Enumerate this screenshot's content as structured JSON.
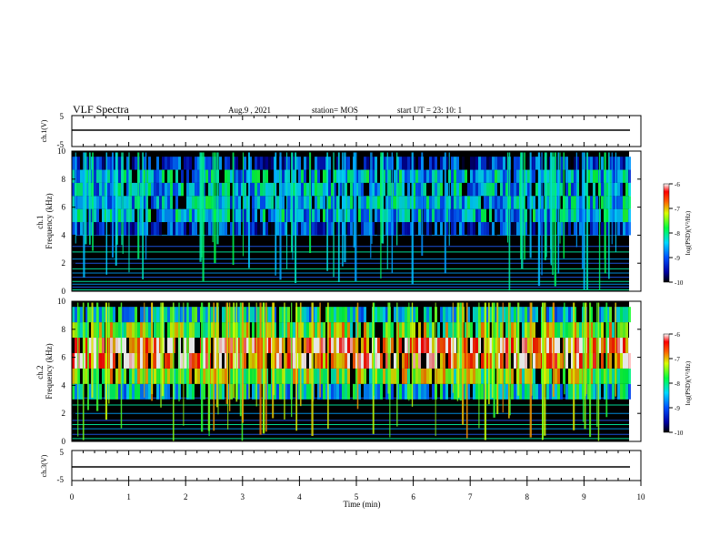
{
  "header": {
    "title": "VLF Spectra",
    "date": "Aug.9  , 2021",
    "station": "station= MOS",
    "start": "start  UT =   23: 10: 1"
  },
  "chart_data": [
    {
      "type": "line",
      "panel": "ch1-waveform",
      "ylabel": "ch.1(V)",
      "ylim": [
        -5,
        5
      ],
      "yticks": [
        "5",
        "-5"
      ],
      "xlim": [
        0,
        10
      ],
      "series": [
        {
          "values_level": 0
        }
      ]
    },
    {
      "type": "heatmap",
      "panel": "ch1-spectrogram",
      "ylabel": "ch.1\nFrequency (kHz)",
      "ylim": [
        0,
        10
      ],
      "yticks": [
        "0",
        "2",
        "4",
        "6",
        "8",
        "10"
      ],
      "xlim": [
        0,
        10
      ],
      "colorbar": {
        "label": "log(PSD)(V²/Hz)",
        "range": [
          -10,
          -6
        ],
        "ticks": [
          "-6",
          "-7",
          "-8",
          "-9",
          "-10"
        ]
      },
      "band_khz": [
        4,
        9.6
      ],
      "band_level": -8,
      "noise_lines_khz": [
        0.1,
        0.3,
        0.5,
        0.7,
        1.0,
        1.3,
        1.6,
        2.0,
        2.3,
        2.8,
        3.2,
        4.0
      ],
      "burst_count": 80
    },
    {
      "type": "heatmap",
      "panel": "ch2-spectrogram",
      "ylabel": "ch.2\nFrequency (kHz)",
      "ylim": [
        0,
        10
      ],
      "yticks": [
        "0",
        "2",
        "4",
        "6",
        "8",
        "10"
      ],
      "xlim": [
        0,
        10
      ],
      "colorbar": {
        "label": "log(PSD)(V²/Hz)",
        "range": [
          -10,
          -6
        ],
        "ticks": [
          "-6",
          "-7",
          "-8",
          "-9",
          "-10"
        ]
      },
      "band_khz": [
        3,
        9.6
      ],
      "core_khz": [
        5,
        8
      ],
      "band_level": -7,
      "noise_lines_khz": [
        0.2,
        0.5,
        0.9,
        1.2,
        1.5,
        2.0,
        2.6,
        3.1
      ],
      "burst_count": 90
    },
    {
      "type": "line",
      "panel": "ch3-waveform",
      "ylabel": "ch.3(V)",
      "ylim": [
        -5,
        5
      ],
      "yticks": [
        "5",
        "-5"
      ],
      "xlim": [
        0,
        10
      ],
      "series": [
        {
          "values_level": 0
        }
      ]
    }
  ],
  "xaxis": {
    "label": "Time  (min)",
    "ticks": [
      "0",
      "1",
      "2",
      "3",
      "4",
      "5",
      "6",
      "7",
      "8",
      "9",
      "10"
    ]
  },
  "colors": {
    "spectrogram_background": "#000000"
  }
}
